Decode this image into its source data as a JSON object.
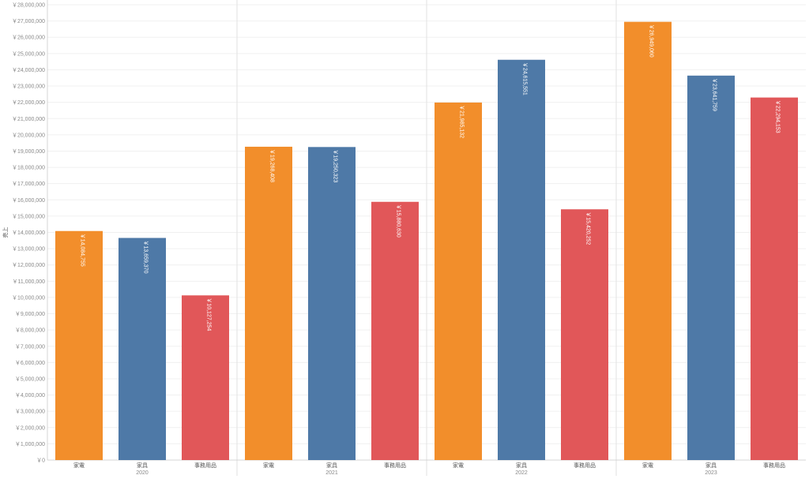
{
  "chart_data": {
    "type": "bar",
    "ylabel": "売上",
    "ylim": [
      0,
      28000000
    ],
    "ytick_step": 1000000,
    "ytick_prefix": "￥",
    "grid": true,
    "groups": [
      {
        "year": "2020",
        "bars": [
          {
            "category": "家電",
            "value": 14084755,
            "label": "￥14,084,755",
            "color": "#F28E2B"
          },
          {
            "category": "家具",
            "value": 13659370,
            "label": "￥13,659,370",
            "color": "#4E79A7"
          },
          {
            "category": "事務用品",
            "value": 10127254,
            "label": "￥10,127,254",
            "color": "#E15759"
          }
        ]
      },
      {
        "year": "2021",
        "bars": [
          {
            "category": "家電",
            "value": 19268408,
            "label": "￥19,268,408",
            "color": "#F28E2B"
          },
          {
            "category": "家具",
            "value": 19250323,
            "label": "￥19,250,323",
            "color": "#4E79A7"
          },
          {
            "category": "事務用品",
            "value": 15880630,
            "label": "￥15,880,630",
            "color": "#E15759"
          }
        ]
      },
      {
        "year": "2022",
        "bars": [
          {
            "category": "家電",
            "value": 21985132,
            "label": "￥21,985,132",
            "color": "#F28E2B"
          },
          {
            "category": "家具",
            "value": 24615551,
            "label": "￥24,615,551",
            "color": "#4E79A7"
          },
          {
            "category": "事務用品",
            "value": 15420252,
            "label": "￥15,420,252",
            "color": "#E15759"
          }
        ]
      },
      {
        "year": "2023",
        "bars": [
          {
            "category": "家電",
            "value": 26949060,
            "label": "￥26,949,060",
            "color": "#F28E2B"
          },
          {
            "category": "家具",
            "value": 23641759,
            "label": "￥23,641,759",
            "color": "#4E79A7"
          },
          {
            "category": "事務用品",
            "value": 22294153,
            "label": "￥22,294,153",
            "color": "#E15759"
          }
        ]
      }
    ]
  }
}
